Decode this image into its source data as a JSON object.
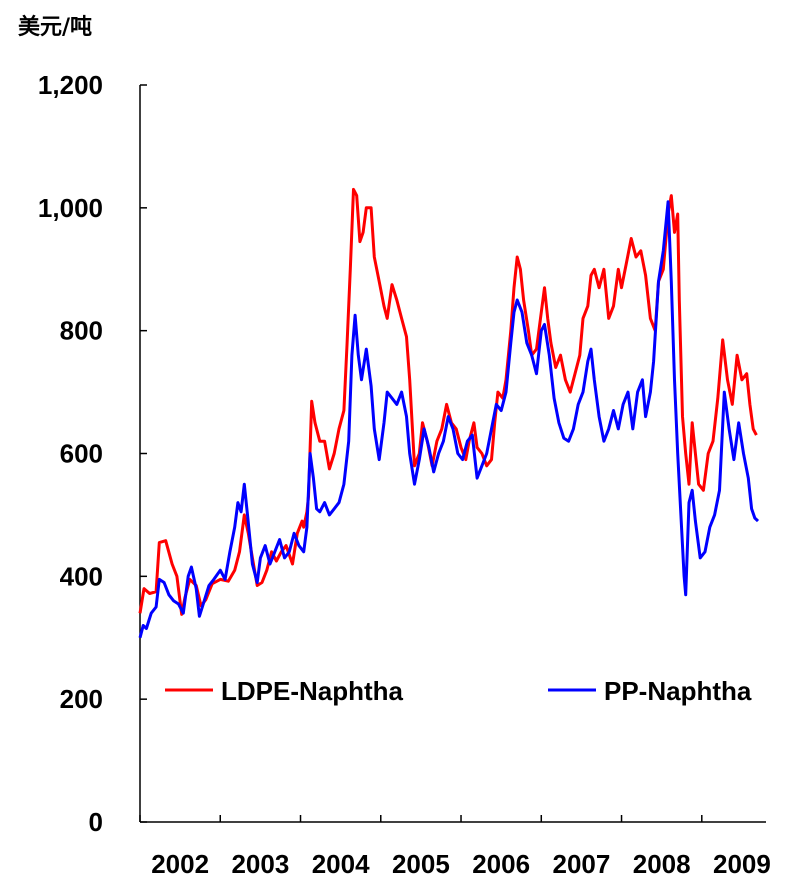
{
  "chart_data": {
    "type": "line",
    "ylabel": "美元/吨",
    "ylim": [
      0,
      1200
    ],
    "yticks": [
      0,
      200,
      400,
      600,
      800,
      1000,
      1200
    ],
    "ytick_labels": [
      "0",
      "200",
      "400",
      "600",
      "800",
      "1,000",
      "1,200"
    ],
    "xlim": [
      2002.0,
      2009.8
    ],
    "xticks": [
      2002,
      2003,
      2004,
      2005,
      2006,
      2007,
      2008,
      2009
    ],
    "xtick_labels": [
      "2002",
      "2003",
      "2004",
      "2005",
      "2006",
      "2007",
      "2008",
      "2009"
    ],
    "legend_position": "lower-middle",
    "grid": false,
    "series": [
      {
        "name": "LDPE-Naphtha",
        "color": "#ff0000",
        "points": [
          [
            2002.0,
            340
          ],
          [
            2002.05,
            380
          ],
          [
            2002.12,
            372
          ],
          [
            2002.2,
            375
          ],
          [
            2002.24,
            455
          ],
          [
            2002.32,
            458
          ],
          [
            2002.4,
            420
          ],
          [
            2002.46,
            400
          ],
          [
            2002.52,
            338
          ],
          [
            2002.56,
            365
          ],
          [
            2002.62,
            395
          ],
          [
            2002.7,
            385
          ],
          [
            2002.76,
            352
          ],
          [
            2002.82,
            362
          ],
          [
            2002.9,
            388
          ],
          [
            2003.0,
            395
          ],
          [
            2003.1,
            392
          ],
          [
            2003.18,
            410
          ],
          [
            2003.24,
            440
          ],
          [
            2003.3,
            500
          ],
          [
            2003.35,
            470
          ],
          [
            2003.4,
            430
          ],
          [
            2003.46,
            385
          ],
          [
            2003.52,
            390
          ],
          [
            2003.58,
            410
          ],
          [
            2003.64,
            440
          ],
          [
            2003.7,
            425
          ],
          [
            2003.76,
            440
          ],
          [
            2003.82,
            450
          ],
          [
            2003.9,
            420
          ],
          [
            2003.96,
            470
          ],
          [
            2004.02,
            490
          ],
          [
            2004.08,
            505
          ],
          [
            2004.04,
            480
          ],
          [
            2004.1,
            530
          ],
          [
            2004.14,
            685
          ],
          [
            2004.18,
            650
          ],
          [
            2004.24,
            620
          ],
          [
            2004.3,
            620
          ],
          [
            2004.36,
            575
          ],
          [
            2004.42,
            600
          ],
          [
            2004.48,
            640
          ],
          [
            2004.54,
            670
          ],
          [
            2004.58,
            780
          ],
          [
            2004.62,
            900
          ],
          [
            2004.66,
            1030
          ],
          [
            2004.7,
            1020
          ],
          [
            2004.74,
            945
          ],
          [
            2004.78,
            960
          ],
          [
            2004.82,
            1000
          ],
          [
            2004.88,
            1000
          ],
          [
            2004.92,
            920
          ],
          [
            2004.98,
            880
          ],
          [
            2005.04,
            840
          ],
          [
            2005.08,
            820
          ],
          [
            2005.14,
            875
          ],
          [
            2005.2,
            850
          ],
          [
            2005.26,
            820
          ],
          [
            2005.32,
            790
          ],
          [
            2005.36,
            720
          ],
          [
            2005.42,
            580
          ],
          [
            2005.48,
            600
          ],
          [
            2005.52,
            650
          ],
          [
            2005.58,
            620
          ],
          [
            2005.64,
            580
          ],
          [
            2005.7,
            620
          ],
          [
            2005.76,
            640
          ],
          [
            2005.82,
            680
          ],
          [
            2005.88,
            650
          ],
          [
            2005.94,
            640
          ],
          [
            2006.0,
            610
          ],
          [
            2006.06,
            590
          ],
          [
            2006.1,
            620
          ],
          [
            2006.16,
            650
          ],
          [
            2006.2,
            610
          ],
          [
            2006.26,
            600
          ],
          [
            2006.32,
            580
          ],
          [
            2006.38,
            590
          ],
          [
            2006.42,
            650
          ],
          [
            2006.46,
            700
          ],
          [
            2006.52,
            690
          ],
          [
            2006.56,
            720
          ],
          [
            2006.62,
            800
          ],
          [
            2006.66,
            870
          ],
          [
            2006.7,
            920
          ],
          [
            2006.74,
            900
          ],
          [
            2006.78,
            850
          ],
          [
            2006.84,
            800
          ],
          [
            2006.88,
            760
          ],
          [
            2006.94,
            770
          ],
          [
            2007.0,
            830
          ],
          [
            2007.04,
            870
          ],
          [
            2007.08,
            820
          ],
          [
            2007.12,
            780
          ],
          [
            2007.18,
            740
          ],
          [
            2007.24,
            760
          ],
          [
            2007.3,
            720
          ],
          [
            2007.36,
            700
          ],
          [
            2007.42,
            730
          ],
          [
            2007.48,
            760
          ],
          [
            2007.52,
            820
          ],
          [
            2007.58,
            840
          ],
          [
            2007.62,
            890
          ],
          [
            2007.66,
            900
          ],
          [
            2007.72,
            870
          ],
          [
            2007.78,
            900
          ],
          [
            2007.84,
            820
          ],
          [
            2007.9,
            840
          ],
          [
            2007.96,
            900
          ],
          [
            2008.0,
            870
          ],
          [
            2008.06,
            910
          ],
          [
            2008.12,
            950
          ],
          [
            2008.18,
            920
          ],
          [
            2008.24,
            930
          ],
          [
            2008.3,
            890
          ],
          [
            2008.36,
            820
          ],
          [
            2008.42,
            800
          ],
          [
            2008.46,
            880
          ],
          [
            2008.52,
            900
          ],
          [
            2008.58,
            990
          ],
          [
            2008.62,
            1020
          ],
          [
            2008.66,
            960
          ],
          [
            2008.7,
            990
          ],
          [
            2008.72,
            850
          ],
          [
            2008.76,
            660
          ],
          [
            2008.8,
            600
          ],
          [
            2008.84,
            550
          ],
          [
            2008.88,
            650
          ],
          [
            2008.92,
            600
          ],
          [
            2008.96,
            550
          ],
          [
            2009.02,
            540
          ],
          [
            2009.08,
            600
          ],
          [
            2009.14,
            620
          ],
          [
            2009.2,
            690
          ],
          [
            2009.26,
            785
          ],
          [
            2009.32,
            720
          ],
          [
            2009.38,
            680
          ],
          [
            2009.44,
            760
          ],
          [
            2009.5,
            720
          ],
          [
            2009.56,
            730
          ],
          [
            2009.6,
            680
          ],
          [
            2009.64,
            640
          ],
          [
            2009.68,
            630
          ]
        ]
      },
      {
        "name": "PP-Naphtha",
        "color": "#0000ff",
        "points": [
          [
            2002.0,
            300
          ],
          [
            2002.04,
            320
          ],
          [
            2002.08,
            315
          ],
          [
            2002.14,
            340
          ],
          [
            2002.2,
            350
          ],
          [
            2002.24,
            395
          ],
          [
            2002.3,
            390
          ],
          [
            2002.36,
            370
          ],
          [
            2002.42,
            360
          ],
          [
            2002.48,
            355
          ],
          [
            2002.54,
            340
          ],
          [
            2002.6,
            400
          ],
          [
            2002.64,
            415
          ],
          [
            2002.7,
            380
          ],
          [
            2002.74,
            335
          ],
          [
            2002.8,
            360
          ],
          [
            2002.86,
            385
          ],
          [
            2002.92,
            395
          ],
          [
            2003.0,
            410
          ],
          [
            2003.06,
            395
          ],
          [
            2003.12,
            440
          ],
          [
            2003.18,
            480
          ],
          [
            2003.22,
            520
          ],
          [
            2003.26,
            505
          ],
          [
            2003.3,
            550
          ],
          [
            2003.34,
            500
          ],
          [
            2003.4,
            420
          ],
          [
            2003.46,
            390
          ],
          [
            2003.5,
            430
          ],
          [
            2003.56,
            450
          ],
          [
            2003.62,
            420
          ],
          [
            2003.68,
            440
          ],
          [
            2003.74,
            460
          ],
          [
            2003.8,
            430
          ],
          [
            2003.86,
            440
          ],
          [
            2003.92,
            470
          ],
          [
            2003.98,
            450
          ],
          [
            2004.04,
            440
          ],
          [
            2004.08,
            480
          ],
          [
            2004.12,
            600
          ],
          [
            2004.16,
            560
          ],
          [
            2004.2,
            510
          ],
          [
            2004.24,
            505
          ],
          [
            2004.3,
            520
          ],
          [
            2004.36,
            500
          ],
          [
            2004.42,
            510
          ],
          [
            2004.48,
            520
          ],
          [
            2004.54,
            550
          ],
          [
            2004.6,
            620
          ],
          [
            2004.64,
            760
          ],
          [
            2004.68,
            825
          ],
          [
            2004.72,
            760
          ],
          [
            2004.76,
            720
          ],
          [
            2004.82,
            770
          ],
          [
            2004.88,
            710
          ],
          [
            2004.92,
            640
          ],
          [
            2004.98,
            590
          ],
          [
            2005.04,
            650
          ],
          [
            2005.08,
            700
          ],
          [
            2005.14,
            690
          ],
          [
            2005.2,
            680
          ],
          [
            2005.26,
            700
          ],
          [
            2005.32,
            660
          ],
          [
            2005.36,
            600
          ],
          [
            2005.42,
            550
          ],
          [
            2005.48,
            590
          ],
          [
            2005.54,
            640
          ],
          [
            2005.6,
            610
          ],
          [
            2005.66,
            570
          ],
          [
            2005.72,
            600
          ],
          [
            2005.78,
            620
          ],
          [
            2005.84,
            660
          ],
          [
            2005.9,
            640
          ],
          [
            2005.96,
            600
          ],
          [
            2006.02,
            590
          ],
          [
            2006.08,
            620
          ],
          [
            2006.14,
            630
          ],
          [
            2006.2,
            560
          ],
          [
            2006.26,
            580
          ],
          [
            2006.32,
            600
          ],
          [
            2006.38,
            640
          ],
          [
            2006.44,
            680
          ],
          [
            2006.5,
            670
          ],
          [
            2006.56,
            700
          ],
          [
            2006.62,
            780
          ],
          [
            2006.66,
            830
          ],
          [
            2006.7,
            850
          ],
          [
            2006.76,
            830
          ],
          [
            2006.82,
            780
          ],
          [
            2006.88,
            760
          ],
          [
            2006.94,
            730
          ],
          [
            2007.0,
            800
          ],
          [
            2007.04,
            810
          ],
          [
            2007.1,
            760
          ],
          [
            2007.16,
            690
          ],
          [
            2007.22,
            650
          ],
          [
            2007.28,
            625
          ],
          [
            2007.34,
            620
          ],
          [
            2007.4,
            640
          ],
          [
            2007.46,
            680
          ],
          [
            2007.52,
            700
          ],
          [
            2007.58,
            750
          ],
          [
            2007.62,
            770
          ],
          [
            2007.66,
            720
          ],
          [
            2007.72,
            660
          ],
          [
            2007.78,
            620
          ],
          [
            2007.84,
            640
          ],
          [
            2007.9,
            670
          ],
          [
            2007.96,
            640
          ],
          [
            2008.02,
            680
          ],
          [
            2008.08,
            700
          ],
          [
            2008.14,
            640
          ],
          [
            2008.2,
            700
          ],
          [
            2008.26,
            720
          ],
          [
            2008.3,
            660
          ],
          [
            2008.36,
            700
          ],
          [
            2008.4,
            750
          ],
          [
            2008.46,
            880
          ],
          [
            2008.52,
            930
          ],
          [
            2008.58,
            1010
          ],
          [
            2008.62,
            880
          ],
          [
            2008.66,
            720
          ],
          [
            2008.7,
            600
          ],
          [
            2008.74,
            500
          ],
          [
            2008.78,
            400
          ],
          [
            2008.8,
            370
          ],
          [
            2008.84,
            520
          ],
          [
            2008.88,
            540
          ],
          [
            2008.92,
            490
          ],
          [
            2008.98,
            430
          ],
          [
            2009.04,
            440
          ],
          [
            2009.1,
            480
          ],
          [
            2009.16,
            500
          ],
          [
            2009.22,
            540
          ],
          [
            2009.28,
            700
          ],
          [
            2009.34,
            640
          ],
          [
            2009.4,
            590
          ],
          [
            2009.46,
            650
          ],
          [
            2009.52,
            600
          ],
          [
            2009.58,
            560
          ],
          [
            2009.62,
            510
          ],
          [
            2009.66,
            495
          ],
          [
            2009.7,
            490
          ]
        ]
      }
    ]
  }
}
